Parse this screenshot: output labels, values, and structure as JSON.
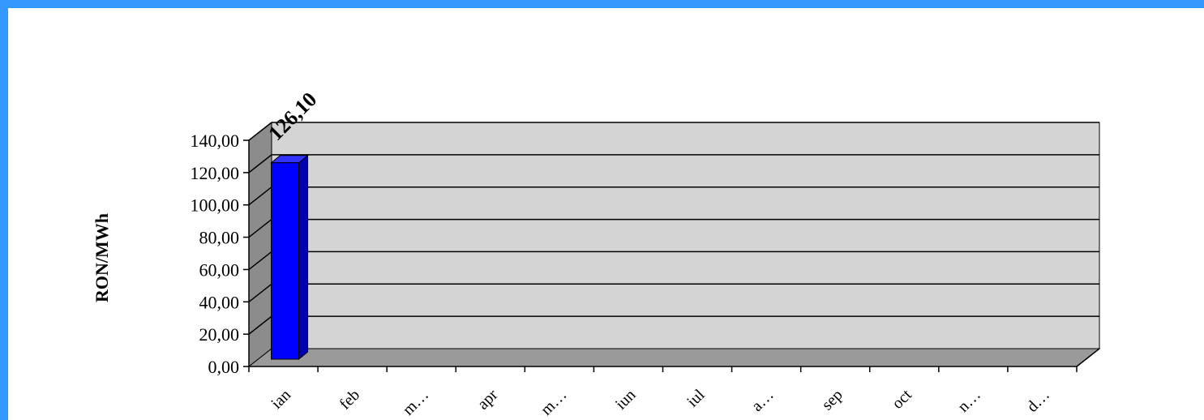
{
  "colors": {
    "frame": "#3399ff",
    "back_wall": "#d4d4d4",
    "side_wall": "#8c8c8c",
    "floor": "#9a9a9a",
    "bar_front": "#0000ff",
    "bar_side": "#0000b3",
    "bar_top": "#3333ff",
    "gridline": "#000000"
  },
  "chart_data": {
    "type": "bar",
    "categories": [
      "ian",
      "feb",
      "m…",
      "apr",
      "m…",
      "iun",
      "iul",
      "a…",
      "sep",
      "oct",
      "n…",
      "d…"
    ],
    "values": [
      126.1,
      null,
      null,
      null,
      null,
      null,
      null,
      null,
      null,
      null,
      null,
      null
    ],
    "data_labels": [
      "126,10"
    ],
    "ylabel": "RON/MWh",
    "ylim": [
      0,
      140
    ],
    "yticks": [
      "0,00",
      "20,00",
      "40,00",
      "60,00",
      "80,00",
      "100,00",
      "120,00",
      "140,00"
    ],
    "three_d": true,
    "grid": true,
    "legend": "none"
  }
}
